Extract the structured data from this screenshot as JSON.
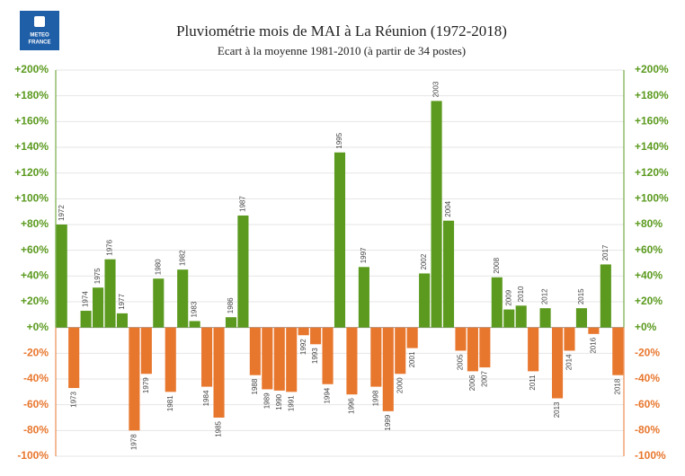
{
  "chart_data": {
    "type": "bar",
    "title": "Pluviométrie mois de MAI à La Réunion (1972-2018)",
    "subtitle": "Ecart à la moyenne 1981-2010 (à partir de 34 postes)",
    "logo_lines": [
      "METEO",
      "FRANCE"
    ],
    "categories": [
      "1972",
      "1973",
      "1974",
      "1975",
      "1976",
      "1977",
      "1978",
      "1979",
      "1980",
      "1981",
      "1982",
      "1983",
      "1984",
      "1985",
      "1986",
      "1987",
      "1988",
      "1989",
      "1990",
      "1991",
      "1992",
      "1993",
      "1994",
      "1995",
      "1996",
      "1997",
      "1998",
      "1999",
      "2000",
      "2001",
      "2002",
      "2003",
      "2004",
      "2005",
      "2006",
      "2007",
      "2008",
      "2009",
      "2010",
      "2011",
      "2012",
      "2013",
      "2014",
      "2015",
      "2016",
      "2017",
      "2018"
    ],
    "values": [
      80,
      -47,
      13,
      31,
      53,
      11,
      -80,
      -36,
      38,
      -50,
      45,
      5,
      -46,
      -70,
      8,
      87,
      -37,
      -48,
      -49,
      -50,
      -6,
      -13,
      -44,
      136,
      -52,
      47,
      -46,
      -65,
      -36,
      -16,
      42,
      176,
      83,
      -18,
      -34,
      -31,
      39,
      14,
      17,
      -34,
      15,
      -55,
      -18,
      15,
      -5,
      49,
      -37
    ],
    "positive_color": "#5b9a1f",
    "negative_color": "#e8772e",
    "ylim": [
      -100,
      200
    ],
    "yticks": [
      {
        "value": -100,
        "label": "-100%"
      },
      {
        "value": -80,
        "label": "-80%"
      },
      {
        "value": -60,
        "label": "-60%"
      },
      {
        "value": -40,
        "label": "-40%"
      },
      {
        "value": -20,
        "label": "-20%"
      },
      {
        "value": 0,
        "label": "+0%"
      },
      {
        "value": 20,
        "label": "+20%"
      },
      {
        "value": 40,
        "label": "+40%"
      },
      {
        "value": 60,
        "label": "+60%"
      },
      {
        "value": 80,
        "label": "+80%"
      },
      {
        "value": 100,
        "label": "+100%"
      },
      {
        "value": 120,
        "label": "+120%"
      },
      {
        "value": 140,
        "label": "+140%"
      },
      {
        "value": 160,
        "label": "+160%"
      },
      {
        "value": 180,
        "label": "+180%"
      },
      {
        "value": 200,
        "label": "+200%"
      }
    ],
    "grid": true
  }
}
